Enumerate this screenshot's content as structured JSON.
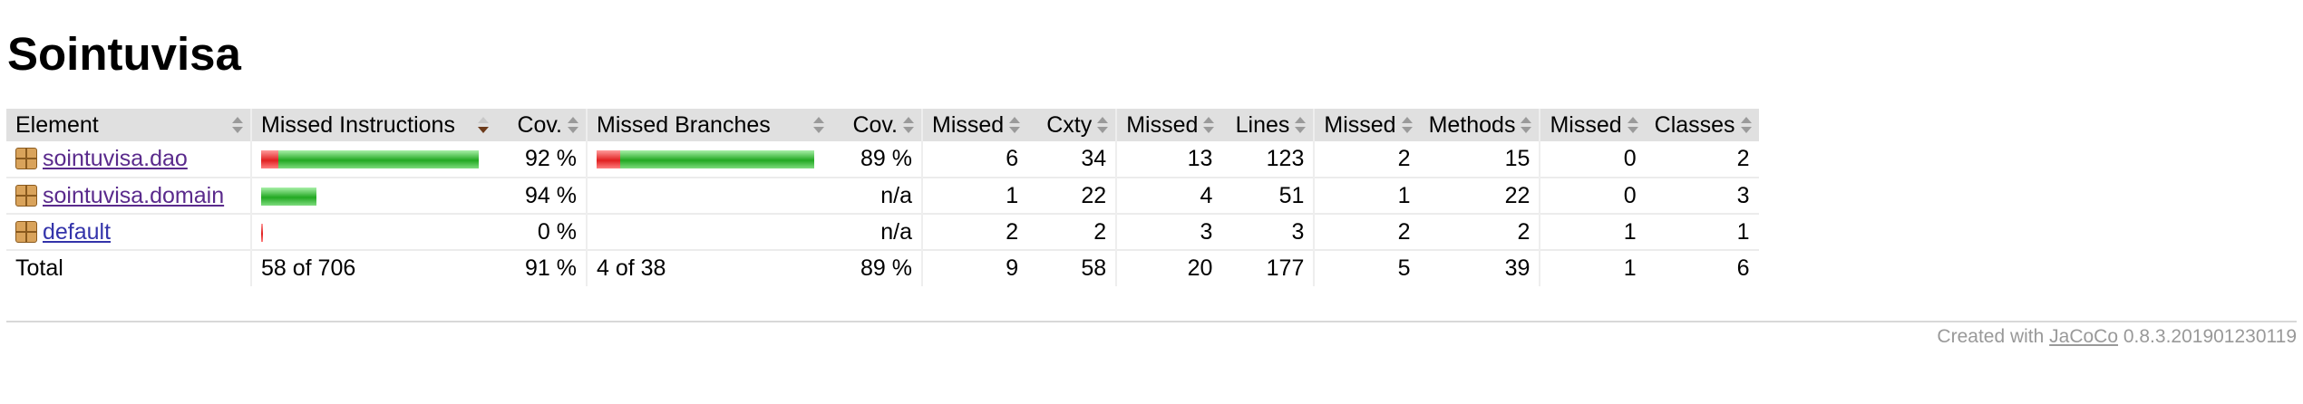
{
  "page": {
    "title": "Sointuvisa"
  },
  "table": {
    "headers": {
      "element": "Element",
      "missed_instructions": "Missed Instructions",
      "cov1": "Cov.",
      "missed_branches": "Missed Branches",
      "cov2": "Cov.",
      "missed_cxty": "Missed",
      "cxty": "Cxty",
      "missed_lines": "Missed",
      "lines": "Lines",
      "missed_methods": "Missed",
      "methods": "Methods",
      "missed_classes": "Missed",
      "classes": "Classes"
    },
    "rows": [
      {
        "name": "sointuvisa.dao",
        "instr_missed_fraction": 0.08,
        "instr_bar_scale": 1.0,
        "instr_cov": "92 %",
        "branch_missed_fraction": 0.11,
        "branch_bar_scale": 1.0,
        "branch_cov": "89 %",
        "missed_cxty": "6",
        "cxty": "34",
        "missed_lines": "13",
        "lines": "123",
        "missed_methods": "2",
        "methods": "15",
        "missed_classes": "0",
        "classes": "2"
      },
      {
        "name": "sointuvisa.domain",
        "instr_missed_fraction": 0.06,
        "instr_bar_scale": 0.27,
        "instr_cov": "94 %",
        "branch_cov": "n/a",
        "missed_cxty": "1",
        "cxty": "22",
        "missed_lines": "4",
        "lines": "51",
        "missed_methods": "1",
        "methods": "22",
        "missed_classes": "0",
        "classes": "3"
      },
      {
        "name": "default",
        "instr_missed_fraction": 1.0,
        "instr_bar_scale": 0.01,
        "instr_cov": "0 %",
        "branch_cov": "n/a",
        "missed_cxty": "2",
        "cxty": "2",
        "missed_lines": "3",
        "lines": "3",
        "missed_methods": "2",
        "methods": "2",
        "missed_classes": "1",
        "classes": "1"
      }
    ],
    "total": {
      "label": "Total",
      "instructions": "58 of 706",
      "instr_cov": "91 %",
      "branches": "4 of 38",
      "branch_cov": "89 %",
      "missed_cxty": "9",
      "cxty": "58",
      "missed_lines": "20",
      "lines": "177",
      "missed_methods": "5",
      "methods": "39",
      "missed_classes": "1",
      "classes": "6"
    }
  },
  "footer": {
    "prefix": "Created with ",
    "link": "JaCoCo",
    "version": " 0.8.3.201901230119"
  },
  "colors": {
    "bar_red": "#e02020",
    "bar_green": "#22a822",
    "header_bg": "#e0e0e0"
  },
  "icons": {
    "package": "package-icon",
    "sort": "sort-arrows-icon"
  }
}
